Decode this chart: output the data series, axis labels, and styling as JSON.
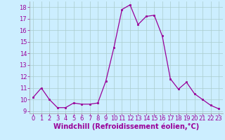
{
  "x": [
    0,
    1,
    2,
    3,
    4,
    5,
    6,
    7,
    8,
    9,
    10,
    11,
    12,
    13,
    14,
    15,
    16,
    17,
    18,
    19,
    20,
    21,
    22,
    23
  ],
  "y": [
    10.2,
    11.0,
    10.0,
    9.3,
    9.3,
    9.7,
    9.6,
    9.6,
    9.7,
    11.6,
    14.5,
    17.8,
    18.2,
    16.5,
    17.2,
    17.3,
    15.5,
    11.8,
    10.9,
    11.5,
    10.5,
    10.0,
    9.5,
    9.2
  ],
  "line_color": "#990099",
  "marker": "s",
  "marker_size": 2,
  "bg_color": "#cceeff",
  "grid_color": "#aacccc",
  "xlabel": "Windchill (Refroidissement éolien,°C)",
  "xlabel_color": "#990099",
  "xlabel_fontsize": 7,
  "tick_color": "#990099",
  "tick_fontsize": 6,
  "ylim": [
    8.8,
    18.5
  ],
  "yticks": [
    9,
    10,
    11,
    12,
    13,
    14,
    15,
    16,
    17,
    18
  ],
  "xlim": [
    -0.5,
    23.5
  ],
  "xticks": [
    0,
    1,
    2,
    3,
    4,
    5,
    6,
    7,
    8,
    9,
    10,
    11,
    12,
    13,
    14,
    15,
    16,
    17,
    18,
    19,
    20,
    21,
    22,
    23
  ]
}
